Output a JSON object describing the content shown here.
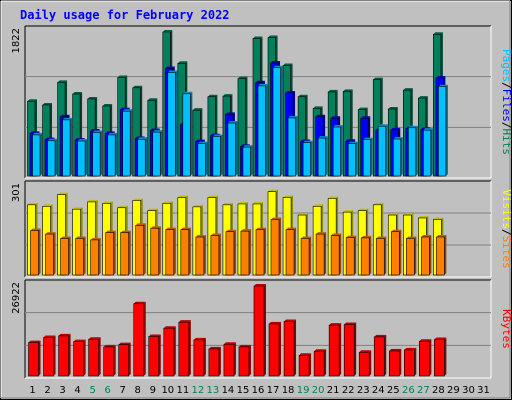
{
  "chart_data": {
    "type": "bar",
    "title": "Daily usage for February 2022",
    "categories": [
      "1",
      "2",
      "3",
      "4",
      "5",
      "6",
      "7",
      "8",
      "9",
      "10",
      "11",
      "12",
      "13",
      "14",
      "15",
      "16",
      "17",
      "18",
      "19",
      "20",
      "21",
      "22",
      "23",
      "24",
      "25",
      "26",
      "27",
      "28",
      "29",
      "30",
      "31"
    ],
    "weekend_days": [
      "5",
      "6",
      "12",
      "13",
      "19",
      "20",
      "26",
      "27"
    ],
    "colors": {
      "background": "#c0c0c0",
      "plot": "#c0c0c0",
      "title": "#0000ff",
      "hits": "#00805c",
      "files": "#0000ff",
      "pages": "#00c0ff",
      "visits": "#ffff00",
      "sites": "#ff8000",
      "kbytes": "#ff0000",
      "weekend_label": "#00805c",
      "weekday_label": "#000000"
    },
    "panels": [
      {
        "id": "hits-files-pages",
        "max_label": "1822",
        "ymax": 1822,
        "legend": [
          {
            "label": "Hits",
            "color": "#00805c"
          },
          {
            "label": "Files",
            "color": "#0000ff"
          },
          {
            "label": "Pages",
            "color": "#00c0ff"
          }
        ],
        "series": [
          {
            "name": "Hits",
            "values": [
              946,
              899,
              1184,
              1037,
              975,
              886,
              1246,
              1116,
              958,
              1822,
              1426,
              833,
              1003,
              1011,
              1233,
              1740,
              1753,
              1398,
              1003,
              855,
              1064,
              1071,
              840,
              1220,
              848,
              1086,
              986,
              1793
            ]
          },
          {
            "name": "Files",
            "values": [
              540,
              460,
              750,
              455,
              570,
              540,
              840,
              475,
              575,
              1360,
              650,
              435,
              510,
              780,
              375,
              1180,
              1430,
              1050,
              437,
              750,
              730,
              440,
              730,
              580,
              583,
              600,
              590,
              1240
            ]
          },
          {
            "name": "Pages",
            "values": [
              520,
              446,
              710,
              443,
              550,
              520,
              820,
              465,
              555,
              1310,
              1040,
              410,
              500,
              670,
              365,
              1140,
              1370,
              735,
              422,
              480,
              620,
              410,
              460,
              630,
              468,
              610,
              580,
              1130
            ]
          }
        ]
      },
      {
        "id": "visits-sites",
        "max_label": "301",
        "ymax": 301,
        "legend": [
          {
            "label": "Sites",
            "color": "#ff8000"
          },
          {
            "label": "Visits",
            "color": "#ffff00"
          }
        ],
        "series": [
          {
            "name": "Visits",
            "values": [
              240,
              235,
              275,
              225,
              250,
              245,
              230,
              255,
              220,
              245,
              265,
              233,
              265,
              240,
              243,
              243,
              285,
              265,
              205,
              235,
              262,
              215,
              220,
              240,
              205,
              205,
              195,
              190
            ]
          },
          {
            "name": "Sites",
            "values": [
              152,
              140,
              125,
              125,
              120,
              145,
              145,
              170,
              160,
              155,
              155,
              130,
              135,
              148,
              150,
              155,
              190,
              155,
              125,
              140,
              135,
              128,
              127,
              125,
              148,
              125,
              130,
              130
            ]
          }
        ]
      },
      {
        "id": "kbytes",
        "max_label": "26922",
        "ymax": 26922,
        "legend": [
          {
            "label": "KBytes",
            "color": "#ff0000"
          }
        ],
        "series": [
          {
            "name": "KBytes",
            "values": [
              10000,
              11500,
              12000,
              10300,
              11000,
              8700,
              9400,
              21600,
              11800,
              14300,
              16100,
              10800,
              8100,
              9500,
              8700,
              26922,
              15600,
              16300,
              6200,
              7400,
              15200,
              15400,
              7100,
              11700,
              7500,
              7800,
              10400,
              10900
            ]
          }
        ]
      }
    ]
  }
}
